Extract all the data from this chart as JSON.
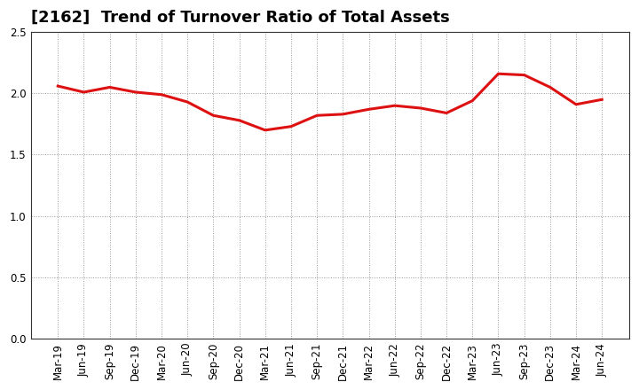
{
  "title": "[2162]  Trend of Turnover Ratio of Total Assets",
  "x_labels": [
    "Mar-19",
    "Jun-19",
    "Sep-19",
    "Dec-19",
    "Mar-20",
    "Jun-20",
    "Sep-20",
    "Dec-20",
    "Mar-21",
    "Jun-21",
    "Sep-21",
    "Dec-21",
    "Mar-22",
    "Jun-22",
    "Sep-22",
    "Dec-22",
    "Mar-23",
    "Jun-23",
    "Sep-23",
    "Dec-23",
    "Mar-24",
    "Jun-24"
  ],
  "y_values": [
    2.06,
    2.01,
    2.05,
    2.01,
    1.99,
    1.93,
    1.82,
    1.78,
    1.7,
    1.73,
    1.82,
    1.83,
    1.87,
    1.9,
    1.88,
    1.84,
    1.94,
    2.16,
    2.15,
    2.05,
    1.91,
    1.95
  ],
  "line_color": "#dd1111",
  "line_width": 2.2,
  "ylim": [
    0.0,
    2.5
  ],
  "yticks": [
    0.0,
    0.5,
    1.0,
    1.5,
    2.0,
    2.5
  ],
  "background_color": "#ffffff",
  "grid_color": "#999999",
  "title_fontsize": 13,
  "tick_fontsize": 8.5
}
